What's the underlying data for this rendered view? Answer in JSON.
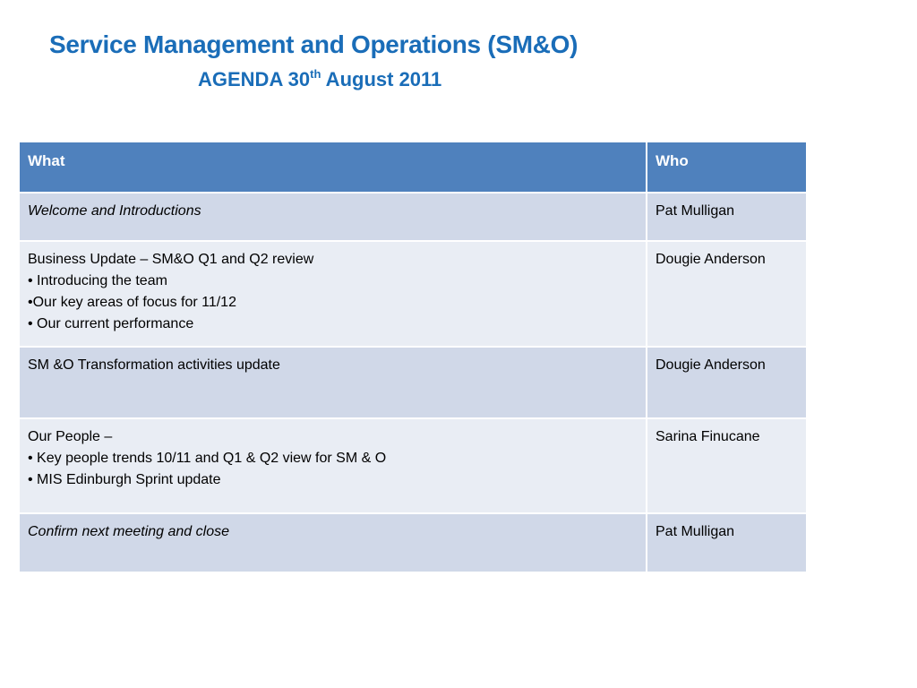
{
  "header": {
    "title": "Service Management and Operations (SM&O)",
    "subtitle_prefix": "AGENDA 30",
    "subtitle_sup": "th",
    "subtitle_suffix": " August 2011"
  },
  "table": {
    "columns": [
      "What",
      "Who"
    ],
    "rows": [
      {
        "what_lines": [
          "Welcome and Introductions"
        ],
        "who": "Pat Mulligan"
      },
      {
        "what_lines": [
          "Business Update – SM&O Q1 and Q2 review",
          "• Introducing the team",
          "•Our key areas of focus for 11/12",
          "• Our current performance"
        ],
        "who": "Dougie Anderson"
      },
      {
        "what_lines": [
          "SM &O Transformation activities update"
        ],
        "who": "Dougie Anderson"
      },
      {
        "what_lines": [
          "Our People –",
          "• Key people trends 10/11 and Q1 & Q2 view for SM & O",
          "• MIS Edinburgh Sprint update"
        ],
        "who": "Sarina Finucane"
      },
      {
        "what_lines": [
          "Confirm next meeting and close"
        ],
        "who": "Pat Mulligan"
      }
    ]
  }
}
